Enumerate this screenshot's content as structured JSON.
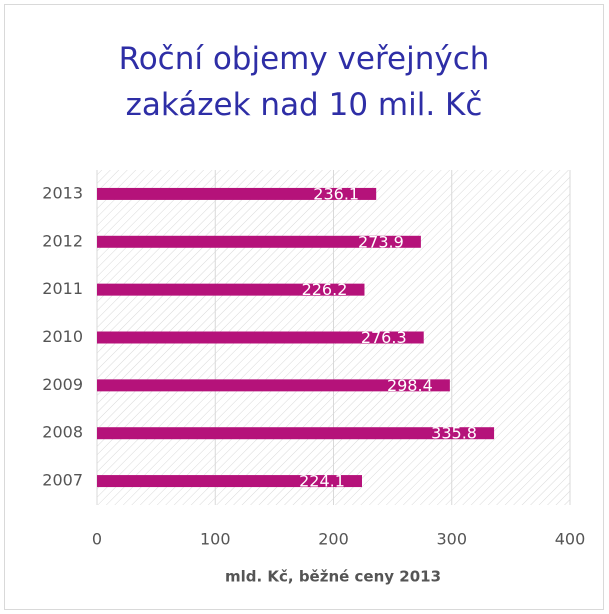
{
  "chart_data": {
    "type": "barh",
    "title": "Roční objemy veřejných zakázek nad 10 mil. Kč",
    "categories": [
      "2013",
      "2012",
      "2011",
      "2010",
      "2009",
      "2008",
      "2007"
    ],
    "values": [
      236.1,
      273.9,
      226.2,
      276.3,
      298.4,
      335.8,
      224.1
    ],
    "color": "#b5127a",
    "xlabel": "mld. Kč, běžné ceny 2013",
    "xlim": [
      0,
      400
    ],
    "xticks": [
      0,
      100,
      200,
      300,
      400
    ],
    "grid": true
  }
}
